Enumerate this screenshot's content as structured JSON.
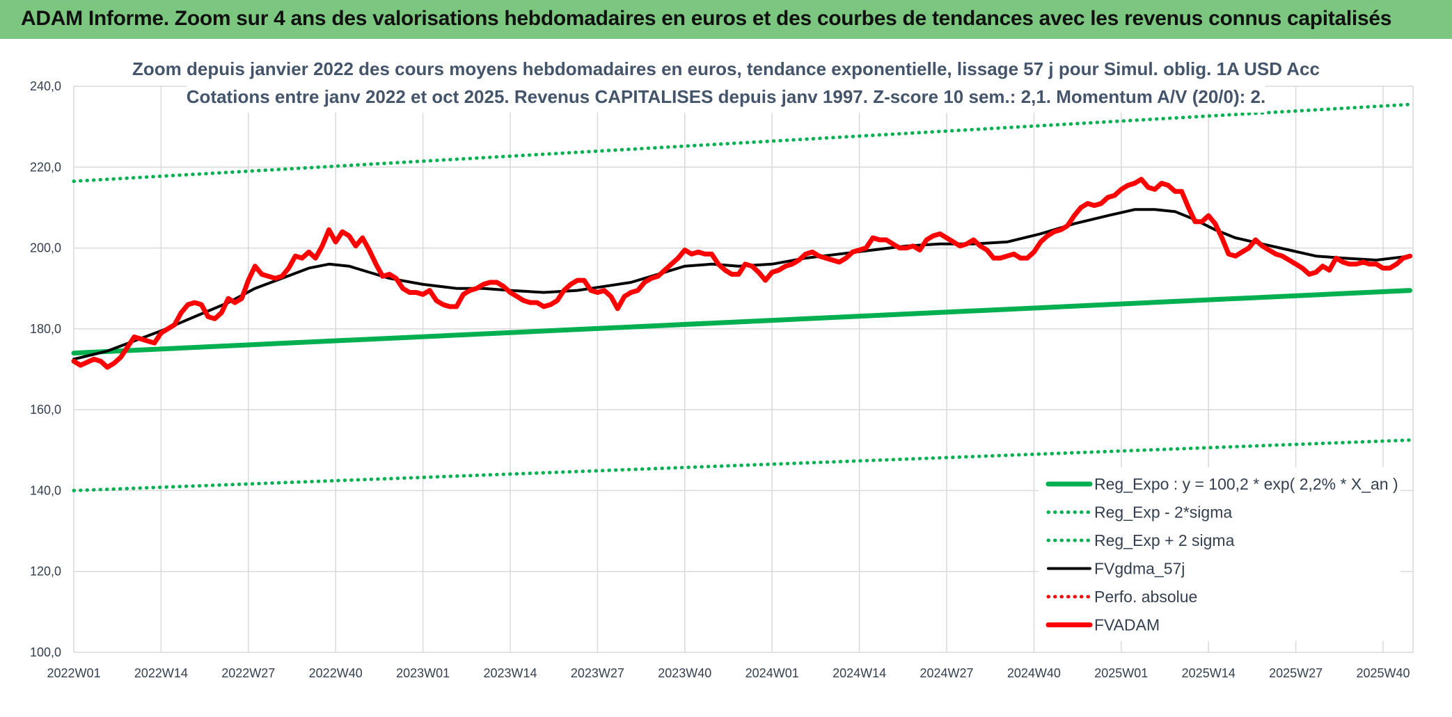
{
  "banner": {
    "title": "ADAM Informe. Zoom sur 4 ans des valorisations hebdomadaires en euros et des courbes de tendances avec les revenus connus capitalisés"
  },
  "colors": {
    "banner_bg": "#7bc77f",
    "green": "#00b050",
    "black": "#000000",
    "red": "#ff0000",
    "grid": "#d9d9d9"
  },
  "chart_data": {
    "type": "line",
    "title_lines": [
      "Zoom depuis janvier 2022 des cours moyens hebdomadaires en euros, tendance exponentielle, lissage 57 j pour Simul. oblig. 1A USD Acc",
      "Cotations entre janv 2022 et oct 2025. Revenus CAPITALISES depuis janv 1997. Z-score 10 sem.: 2,1. Momentum A/V (20/0): 2."
    ],
    "y_range": [
      100,
      240
    ],
    "y_ticks": [
      "100,0",
      "120,0",
      "140,0",
      "160,0",
      "180,0",
      "200,0",
      "220,0",
      "240,0"
    ],
    "x_week_range": [
      1,
      196
    ],
    "x_tick_weeks": [
      1,
      14,
      27,
      40,
      53,
      66,
      79,
      92,
      105,
      118,
      131,
      144,
      157,
      170,
      183,
      196
    ],
    "x_ticks": [
      "2022W01",
      "2022W14",
      "2022W27",
      "2022W40",
      "2023W01",
      "2023W14",
      "2023W27",
      "2023W40",
      "2024W01",
      "2024W14",
      "2024W27",
      "2024W40",
      "2025W01",
      "2025W14",
      "2025W27",
      "2025W40"
    ],
    "grid": true,
    "legend_position": "bottom-right",
    "series": [
      {
        "name": "Reg_Expo : y = 100,2 * exp( 2,2% *  X_an )",
        "style": "solid-thick",
        "color": "#00b050",
        "points": [
          [
            1,
            174.0
          ],
          [
            200,
            189.5
          ]
        ]
      },
      {
        "name": "Reg_Exp - 2*sigma",
        "style": "dotted",
        "color": "#00b050",
        "points": [
          [
            1,
            140.0
          ],
          [
            200,
            152.5
          ]
        ]
      },
      {
        "name": "Reg_Exp + 2 sigma",
        "style": "dotted",
        "color": "#00b050",
        "points": [
          [
            1,
            216.5
          ],
          [
            200,
            235.5
          ]
        ]
      },
      {
        "name": "FVgdma_57j",
        "style": "solid",
        "color": "#000000",
        "points": [
          [
            1,
            172.5
          ],
          [
            6,
            174.5
          ],
          [
            10,
            177.0
          ],
          [
            14,
            179.5
          ],
          [
            19,
            183.0
          ],
          [
            24,
            186.5
          ],
          [
            28,
            190.0
          ],
          [
            32,
            192.5
          ],
          [
            36,
            195.0
          ],
          [
            39,
            196.0
          ],
          [
            42,
            195.5
          ],
          [
            45,
            194.0
          ],
          [
            48,
            192.5
          ],
          [
            53,
            191.0
          ],
          [
            58,
            190.0
          ],
          [
            62,
            190.0
          ],
          [
            66,
            189.5
          ],
          [
            71,
            189.0
          ],
          [
            76,
            189.5
          ],
          [
            80,
            190.5
          ],
          [
            84,
            191.5
          ],
          [
            88,
            193.5
          ],
          [
            92,
            195.5
          ],
          [
            96,
            196.0
          ],
          [
            100,
            195.5
          ],
          [
            105,
            196.0
          ],
          [
            110,
            197.5
          ],
          [
            115,
            198.5
          ],
          [
            120,
            199.5
          ],
          [
            125,
            200.5
          ],
          [
            130,
            201.0
          ],
          [
            135,
            201.0
          ],
          [
            140,
            201.5
          ],
          [
            145,
            203.5
          ],
          [
            150,
            206.0
          ],
          [
            155,
            208.0
          ],
          [
            159,
            209.5
          ],
          [
            162,
            209.5
          ],
          [
            165,
            209.0
          ],
          [
            168,
            207.0
          ],
          [
            171,
            204.5
          ],
          [
            174,
            202.5
          ],
          [
            178,
            201.0
          ],
          [
            182,
            199.5
          ],
          [
            186,
            198.0
          ],
          [
            190,
            197.5
          ],
          [
            195,
            197.0
          ],
          [
            200,
            198.0
          ]
        ]
      },
      {
        "name": "Perfo. absolue",
        "style": "dotted",
        "color": "#ff0000",
        "points": []
      },
      {
        "name": "FVADAM",
        "style": "solid-thick",
        "color": "#ff0000",
        "points": [
          [
            1,
            172.0
          ],
          [
            2,
            171.0
          ],
          [
            4,
            172.5
          ],
          [
            5,
            172.0
          ],
          [
            6,
            170.5
          ],
          [
            7,
            171.5
          ],
          [
            8,
            173.0
          ],
          [
            10,
            178.0
          ],
          [
            11,
            177.5
          ],
          [
            12,
            177.0
          ],
          [
            13,
            176.5
          ],
          [
            14,
            179.0
          ],
          [
            15,
            180.0
          ],
          [
            16,
            181.0
          ],
          [
            17,
            184.0
          ],
          [
            18,
            186.0
          ],
          [
            19,
            186.5
          ],
          [
            20,
            186.0
          ],
          [
            21,
            183.0
          ],
          [
            22,
            182.5
          ],
          [
            23,
            184.0
          ],
          [
            24,
            187.5
          ],
          [
            25,
            186.5
          ],
          [
            26,
            187.5
          ],
          [
            27,
            192.0
          ],
          [
            28,
            195.5
          ],
          [
            29,
            193.5
          ],
          [
            30,
            193.0
          ],
          [
            31,
            192.5
          ],
          [
            32,
            193.0
          ],
          [
            33,
            195.0
          ],
          [
            34,
            198.0
          ],
          [
            35,
            197.5
          ],
          [
            36,
            199.0
          ],
          [
            37,
            197.5
          ],
          [
            38,
            200.5
          ],
          [
            39,
            204.5
          ],
          [
            40,
            201.5
          ],
          [
            41,
            204.0
          ],
          [
            42,
            203.0
          ],
          [
            43,
            200.5
          ],
          [
            44,
            202.5
          ],
          [
            45,
            199.5
          ],
          [
            46,
            196.0
          ],
          [
            47,
            193.0
          ],
          [
            48,
            193.5
          ],
          [
            49,
            192.5
          ],
          [
            50,
            190.0
          ],
          [
            51,
            189.0
          ],
          [
            52,
            189.0
          ],
          [
            53,
            188.5
          ],
          [
            54,
            189.5
          ],
          [
            55,
            187.0
          ],
          [
            56,
            186.0
          ],
          [
            57,
            185.5
          ],
          [
            58,
            185.5
          ],
          [
            59,
            188.5
          ],
          [
            60,
            189.5
          ],
          [
            61,
            190.0
          ],
          [
            62,
            191.0
          ],
          [
            63,
            191.5
          ],
          [
            64,
            191.5
          ],
          [
            65,
            190.5
          ],
          [
            66,
            189.0
          ],
          [
            67,
            188.0
          ],
          [
            68,
            187.0
          ],
          [
            69,
            186.5
          ],
          [
            70,
            186.5
          ],
          [
            71,
            185.5
          ],
          [
            72,
            186.0
          ],
          [
            73,
            187.0
          ],
          [
            74,
            189.5
          ],
          [
            75,
            191.0
          ],
          [
            76,
            192.0
          ],
          [
            77,
            192.0
          ],
          [
            78,
            189.5
          ],
          [
            79,
            189.0
          ],
          [
            80,
            189.5
          ],
          [
            81,
            188.0
          ],
          [
            82,
            185.0
          ],
          [
            83,
            188.0
          ],
          [
            84,
            189.0
          ],
          [
            85,
            189.5
          ],
          [
            86,
            191.5
          ],
          [
            87,
            192.5
          ],
          [
            88,
            193.0
          ],
          [
            89,
            194.5
          ],
          [
            90,
            196.0
          ],
          [
            91,
            197.5
          ],
          [
            92,
            199.5
          ],
          [
            93,
            198.5
          ],
          [
            94,
            199.0
          ],
          [
            95,
            198.5
          ],
          [
            96,
            198.5
          ],
          [
            97,
            196.0
          ],
          [
            98,
            194.5
          ],
          [
            99,
            193.5
          ],
          [
            100,
            193.5
          ],
          [
            101,
            196.0
          ],
          [
            102,
            195.5
          ],
          [
            103,
            194.0
          ],
          [
            104,
            192.0
          ],
          [
            105,
            194.0
          ],
          [
            106,
            194.5
          ],
          [
            107,
            195.5
          ],
          [
            108,
            196.0
          ],
          [
            109,
            197.0
          ],
          [
            110,
            198.5
          ],
          [
            111,
            199.0
          ],
          [
            112,
            198.0
          ],
          [
            113,
            197.5
          ],
          [
            114,
            197.0
          ],
          [
            115,
            196.5
          ],
          [
            116,
            197.5
          ],
          [
            117,
            199.0
          ],
          [
            118,
            199.5
          ],
          [
            119,
            200.0
          ],
          [
            120,
            202.5
          ],
          [
            121,
            202.0
          ],
          [
            122,
            202.0
          ],
          [
            123,
            201.0
          ],
          [
            124,
            200.0
          ],
          [
            125,
            200.0
          ],
          [
            126,
            200.5
          ],
          [
            127,
            199.5
          ],
          [
            128,
            202.0
          ],
          [
            129,
            203.0
          ],
          [
            130,
            203.5
          ],
          [
            131,
            202.5
          ],
          [
            132,
            201.5
          ],
          [
            133,
            200.5
          ],
          [
            134,
            201.0
          ],
          [
            135,
            202.0
          ],
          [
            136,
            200.5
          ],
          [
            137,
            199.5
          ],
          [
            138,
            197.5
          ],
          [
            139,
            197.5
          ],
          [
            140,
            198.0
          ],
          [
            141,
            198.5
          ],
          [
            142,
            197.5
          ],
          [
            143,
            197.5
          ],
          [
            144,
            199.0
          ],
          [
            145,
            201.5
          ],
          [
            146,
            203.0
          ],
          [
            147,
            204.0
          ],
          [
            148,
            204.5
          ],
          [
            149,
            205.5
          ],
          [
            150,
            208.0
          ],
          [
            151,
            210.0
          ],
          [
            152,
            211.0
          ],
          [
            153,
            210.5
          ],
          [
            154,
            211.0
          ],
          [
            155,
            212.5
          ],
          [
            156,
            213.0
          ],
          [
            157,
            214.5
          ],
          [
            158,
            215.5
          ],
          [
            159,
            216.0
          ],
          [
            160,
            217.0
          ],
          [
            161,
            215.0
          ],
          [
            162,
            214.5
          ],
          [
            163,
            216.0
          ],
          [
            164,
            215.5
          ],
          [
            165,
            214.0
          ],
          [
            166,
            214.0
          ],
          [
            167,
            210.0
          ],
          [
            168,
            206.5
          ],
          [
            169,
            206.5
          ],
          [
            170,
            208.0
          ],
          [
            171,
            206.0
          ],
          [
            172,
            202.5
          ],
          [
            173,
            198.5
          ],
          [
            174,
            198.0
          ],
          [
            175,
            199.0
          ],
          [
            176,
            200.0
          ],
          [
            177,
            202.0
          ],
          [
            178,
            200.5
          ],
          [
            179,
            199.5
          ],
          [
            180,
            198.5
          ],
          [
            181,
            198.0
          ],
          [
            182,
            197.0
          ],
          [
            183,
            196.0
          ],
          [
            184,
            195.0
          ],
          [
            185,
            193.5
          ],
          [
            186,
            194.0
          ],
          [
            187,
            195.5
          ],
          [
            188,
            194.5
          ],
          [
            189,
            197.5
          ],
          [
            190,
            196.5
          ],
          [
            191,
            196.0
          ],
          [
            192,
            196.0
          ],
          [
            193,
            196.5
          ],
          [
            194,
            196.0
          ],
          [
            195,
            196.0
          ],
          [
            196,
            195.0
          ],
          [
            197,
            195.0
          ],
          [
            198,
            196.0
          ],
          [
            199,
            197.5
          ],
          [
            200,
            198.0
          ]
        ]
      }
    ]
  }
}
